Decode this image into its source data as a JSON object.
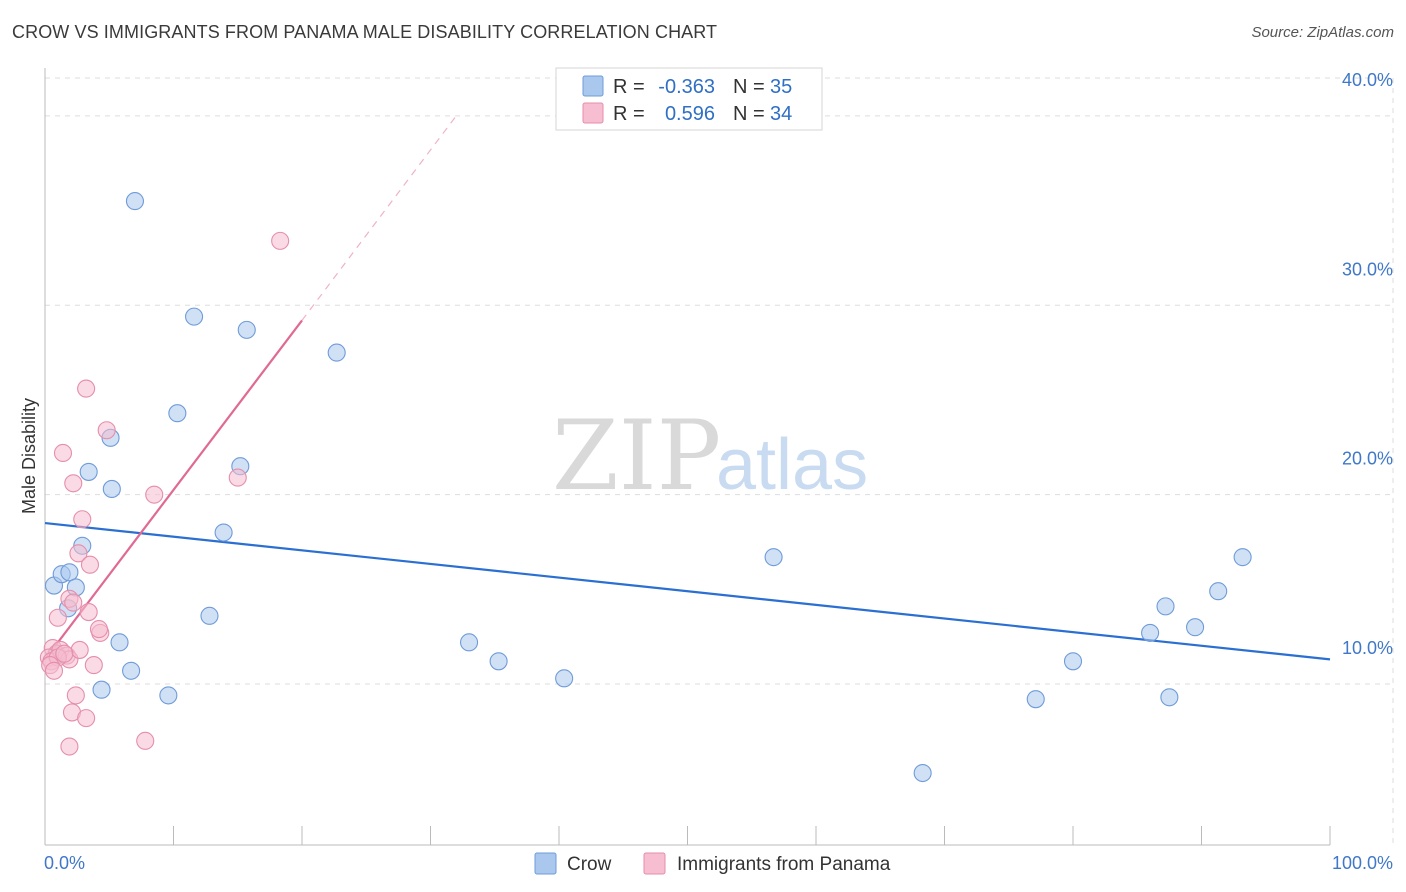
{
  "title": "CROW VS IMMIGRANTS FROM PANAMA MALE DISABILITY CORRELATION CHART",
  "source": "Source: ZipAtlas.com",
  "watermark": {
    "zip": "ZIP",
    "atlas": "atlas"
  },
  "colors": {
    "crow_fill": "#aac8ee",
    "crow_stroke": "#6f9bd8",
    "crow_line": "#2a6fd1",
    "panama_fill": "#f6bed0",
    "panama_stroke": "#e58eab",
    "panama_line": "#e06a93",
    "tick_label": "#3f78c8",
    "grid": "#dddddd"
  },
  "legend": {
    "row1": {
      "r_label": "R =",
      "r_value": "-0.363",
      "n_label": "N =",
      "n_value": "35"
    },
    "row2": {
      "r_label": "R =",
      "r_value": "0.596",
      "n_label": "N =",
      "n_value": "34"
    }
  },
  "chart_data": {
    "type": "scatter",
    "xlabel": "",
    "ylabel": "Male Disability",
    "xlim": [
      0,
      100
    ],
    "ylim": [
      1.5,
      42
    ],
    "x_tick_labels": [
      {
        "value": 0,
        "label": "0.0%"
      },
      {
        "value": 100,
        "label": "100.0%"
      }
    ],
    "y_ticks": [
      {
        "value": 10,
        "label": "10.0%"
      },
      {
        "value": 20,
        "label": "20.0%"
      },
      {
        "value": 30,
        "label": "30.0%"
      },
      {
        "value": 40,
        "label": "40.0%"
      }
    ],
    "grid": true,
    "legend_position": "top-center",
    "series": [
      {
        "name": "Crow",
        "r": -0.363,
        "n": 35,
        "trend": {
          "x": [
            0,
            100
          ],
          "y": [
            18.5,
            11.3
          ]
        },
        "points": [
          [
            7.0,
            35.5
          ],
          [
            11.6,
            29.4
          ],
          [
            15.7,
            28.7
          ],
          [
            22.7,
            27.5
          ],
          [
            10.3,
            24.3
          ],
          [
            5.1,
            23.0
          ],
          [
            15.2,
            21.5
          ],
          [
            3.4,
            21.2
          ],
          [
            5.2,
            20.3
          ],
          [
            13.9,
            18.0
          ],
          [
            2.9,
            17.3
          ],
          [
            0.7,
            15.2
          ],
          [
            1.3,
            15.8
          ],
          [
            1.9,
            15.9
          ],
          [
            2.4,
            15.1
          ],
          [
            1.8,
            14.0
          ],
          [
            12.8,
            13.6
          ],
          [
            5.8,
            12.2
          ],
          [
            6.7,
            10.7
          ],
          [
            4.4,
            9.7
          ],
          [
            9.6,
            9.4
          ],
          [
            33.0,
            12.2
          ],
          [
            35.3,
            11.2
          ],
          [
            40.4,
            10.3
          ],
          [
            56.7,
            16.7
          ],
          [
            68.3,
            5.3
          ],
          [
            77.1,
            9.2
          ],
          [
            80.0,
            11.2
          ],
          [
            86.0,
            12.7
          ],
          [
            87.2,
            14.1
          ],
          [
            87.5,
            9.3
          ],
          [
            89.5,
            13.0
          ],
          [
            91.3,
            14.9
          ],
          [
            93.2,
            16.7
          ],
          [
            0.9,
            11.5
          ]
        ]
      },
      {
        "name": "Immigrants from Panama",
        "r": 0.596,
        "n": 34,
        "trend": {
          "x": [
            0,
            20
          ],
          "y": [
            11.3,
            29.2
          ]
        },
        "trend_dashed": {
          "x": [
            20,
            32
          ],
          "y": [
            29.2,
            40.0
          ]
        },
        "points": [
          [
            18.3,
            33.4
          ],
          [
            3.2,
            25.6
          ],
          [
            4.8,
            23.4
          ],
          [
            1.4,
            22.2
          ],
          [
            15.0,
            20.9
          ],
          [
            2.2,
            20.6
          ],
          [
            8.5,
            20.0
          ],
          [
            2.9,
            18.7
          ],
          [
            2.6,
            16.9
          ],
          [
            3.5,
            16.3
          ],
          [
            1.9,
            14.5
          ],
          [
            2.2,
            14.3
          ],
          [
            3.4,
            13.8
          ],
          [
            1.0,
            13.5
          ],
          [
            4.3,
            12.7
          ],
          [
            4.2,
            12.9
          ],
          [
            0.6,
            11.9
          ],
          [
            0.9,
            11.6
          ],
          [
            0.3,
            11.4
          ],
          [
            0.5,
            11.2
          ],
          [
            1.2,
            11.8
          ],
          [
            1.7,
            11.5
          ],
          [
            1.9,
            11.3
          ],
          [
            1.0,
            11.4
          ],
          [
            0.4,
            11.0
          ],
          [
            3.8,
            11.0
          ],
          [
            0.7,
            10.7
          ],
          [
            2.7,
            11.8
          ],
          [
            2.4,
            9.4
          ],
          [
            2.1,
            8.5
          ],
          [
            3.2,
            8.2
          ],
          [
            1.9,
            6.7
          ],
          [
            7.8,
            7.0
          ],
          [
            1.5,
            11.6
          ]
        ]
      }
    ]
  }
}
